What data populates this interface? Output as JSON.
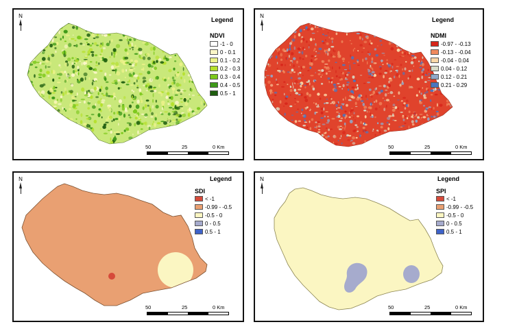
{
  "panels": [
    {
      "id": "ndvi",
      "legend_title": "Legend",
      "layer_name": "NDVI",
      "north_label": "N",
      "scale_labels": [
        "50",
        "25",
        "0 Km"
      ],
      "classes": [
        {
          "label": "-1 - 0",
          "color": "#ffffff"
        },
        {
          "label": "0 - 0.1",
          "color": "#fbf6c8"
        },
        {
          "label": "0.1 - 0.2",
          "color": "#ecf28a"
        },
        {
          "label": "0.2 - 0.3",
          "color": "#b5e02c"
        },
        {
          "label": "0.3 - 0.4",
          "color": "#7cc81c"
        },
        {
          "label": "0.4 - 0.5",
          "color": "#3e9a18"
        },
        {
          "label": "0.5 - 1",
          "color": "#1f5e10"
        }
      ]
    },
    {
      "id": "ndmi",
      "legend_title": "Legend",
      "layer_name": "NDMI",
      "north_label": "N",
      "scale_labels": [
        "50",
        "25",
        "0 Km"
      ],
      "classes": [
        {
          "label": "-0.97 - -0.13",
          "color": "#d7261b"
        },
        {
          "label": "-0.13 - -0.04",
          "color": "#f08a5e"
        },
        {
          "label": "-0.04 - 0.04",
          "color": "#fbd8a8"
        },
        {
          "label": "0.04 - 0.12",
          "color": "#d8dcc8"
        },
        {
          "label": "0.12 - 0.21",
          "color": "#90a8c8"
        },
        {
          "label": "0.21 - 0.29",
          "color": "#4a76c0"
        }
      ]
    },
    {
      "id": "sdi",
      "legend_title": "Legend",
      "layer_name": "SDI",
      "north_label": "N",
      "scale_labels": [
        "50",
        "25",
        "0 Km"
      ],
      "classes": [
        {
          "label": "< -1",
          "color": "#d64a3a"
        },
        {
          "label": "-0.99 - -0.5",
          "color": "#e9a072"
        },
        {
          "label": "-0.5 - 0",
          "color": "#fbf6c2"
        },
        {
          "label": "0 - 0.5",
          "color": "#a6abcd"
        },
        {
          "label": "0.5 - 1",
          "color": "#3e62c8"
        }
      ]
    },
    {
      "id": "spi",
      "legend_title": "Legend",
      "layer_name": "SPI",
      "north_label": "N",
      "scale_labels": [
        "50",
        "25",
        "0 Km"
      ],
      "classes": [
        {
          "label": "< -1",
          "color": "#d64a3a"
        },
        {
          "label": "-0.99 - -0.5",
          "color": "#e9a072"
        },
        {
          "label": "-0.5 - 0",
          "color": "#fbf6c2"
        },
        {
          "label": "0 - 0.5",
          "color": "#a6abcd"
        },
        {
          "label": "0.5 - 1",
          "color": "#3e62c8"
        }
      ]
    }
  ],
  "region": {
    "ndvi_base_color": "#c9e87a",
    "ndmi_base_color": "#e0432c",
    "sdi_base_color": "#e9a072",
    "spi_base_color": "#fbf6c2",
    "sdi_wet_zone_color": "#fbf6c2",
    "sdi_dry_spot_color": "#d64a3a",
    "spi_wet_zone_color": "#a6abcd"
  }
}
